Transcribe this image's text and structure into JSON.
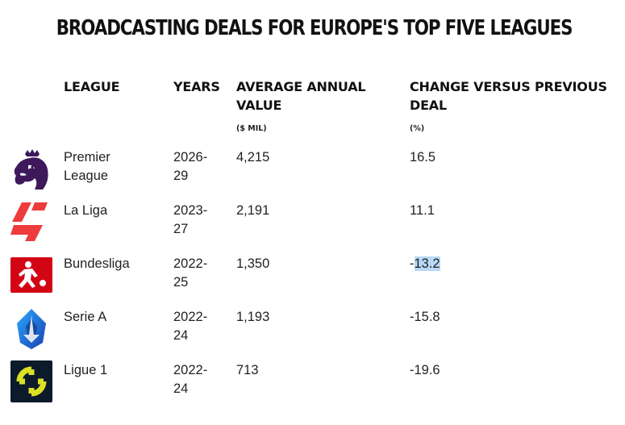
{
  "title": "BROADCASTING DEALS FOR EUROPE'S TOP FIVE LEAGUES",
  "headers": {
    "league": "LEAGUE",
    "years": "YEARS",
    "avg_line1": "AVERAGE ANNUAL",
    "avg_line2": "VALUE",
    "avg_unit": "($ MIL)",
    "change_line1": "CHANGE VERSUS PREVIOUS",
    "change_line2": "DEAL",
    "change_unit": "(%)"
  },
  "rows": [
    {
      "league_l1": "Premier",
      "league_l2": "League",
      "years_l1": "2026-",
      "years_l2": "29",
      "value": "4,215",
      "change": "16.5",
      "logo": "premier-league-lion-icon"
    },
    {
      "league_l1": "La Liga",
      "league_l2": "",
      "years_l1": "2023-",
      "years_l2": "27",
      "value": "2,191",
      "change": "11.1",
      "logo": "laliga-icon"
    },
    {
      "league_l1": "Bundesliga",
      "league_l2": "",
      "years_l1": "2022-",
      "years_l2": "25",
      "value": "1,350",
      "change_sign": "-",
      "change_num": "13.2",
      "logo": "bundesliga-icon"
    },
    {
      "league_l1": "Serie A",
      "league_l2": "",
      "years_l1": "2022-",
      "years_l2": "24",
      "value": "1,193",
      "change": "-15.8",
      "logo": "serie-a-icon"
    },
    {
      "league_l1": "Ligue 1",
      "league_l2": "",
      "years_l1": "2022-",
      "years_l2": "24",
      "value": "713",
      "change": "-19.6",
      "logo": "ligue-1-icon"
    }
  ],
  "colors": {
    "premier_league": "#3d195b",
    "laliga": "#ee3b3b",
    "bundesliga": "#d20515",
    "serie_a": "#1f6fd8",
    "ligue1_bg": "#0d1a2b",
    "ligue1_accent": "#dae025",
    "selection": "#b8d8f8"
  }
}
